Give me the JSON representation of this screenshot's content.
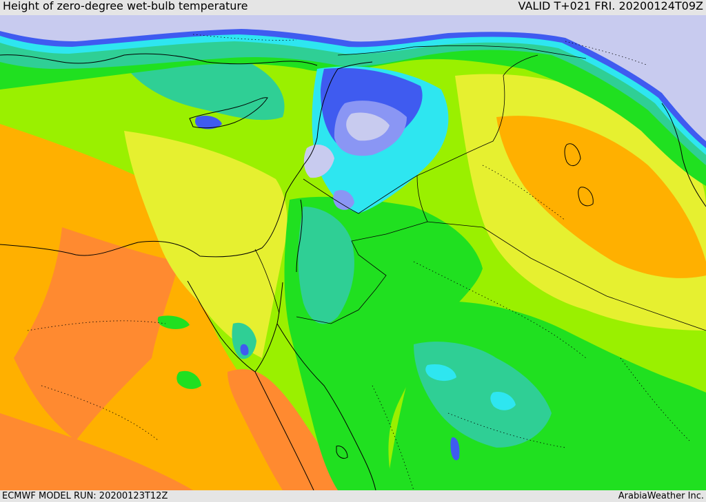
{
  "header": {
    "title": "Height of zero-degree wet-bulb temperature",
    "valid": "VALID T+021 FRI. 20200124T09Z"
  },
  "footer": {
    "model_run": "ECMWF MODEL RUN: 20200123T12Z",
    "credit": "ArabiaWeather Inc."
  },
  "colors": {
    "below_freezing": "#c8cbef",
    "blue_low": "#3f5bf0",
    "blue_mid": "#8a96f4",
    "cyan": "#2ee6f0",
    "teal": "#2fcf95",
    "green": "#20e020",
    "lime": "#9af000",
    "yellow_green": "#e6f030",
    "orange": "#ffb000",
    "dark_orange": "#ff8a30",
    "red": "#ff4a20",
    "borders": "#000000"
  }
}
